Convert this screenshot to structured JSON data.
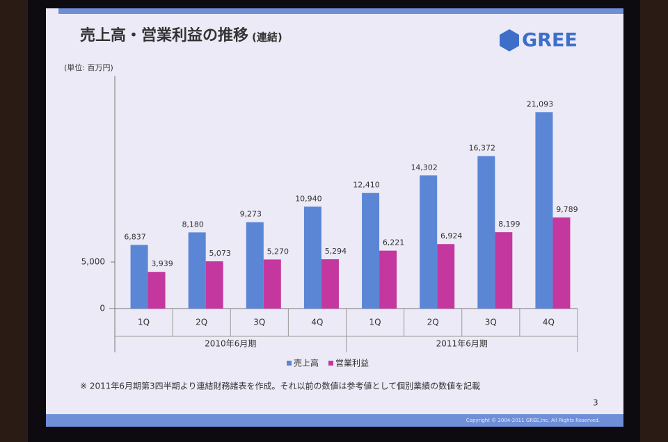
{
  "chart_data": {
    "type": "bar",
    "title": "売上高・営業利益の推移",
    "subtitle": "(連結)",
    "y_label": "(単位: 百万円)",
    "categories": [
      "1Q",
      "2Q",
      "3Q",
      "4Q",
      "1Q",
      "2Q",
      "3Q",
      "4Q"
    ],
    "groups": [
      "2010年6月期",
      "2011年6月期"
    ],
    "series": [
      {
        "name": "売上高",
        "color": "#5b86d6",
        "values": [
          6837,
          8180,
          9273,
          10940,
          12410,
          14302,
          16372,
          21093
        ],
        "value_labels": [
          "6,837",
          "8,180",
          "9,273",
          "10,940",
          "12,410",
          "14,302",
          "16,372",
          "21,093"
        ]
      },
      {
        "name": "営業利益",
        "color": "#c4379e",
        "values": [
          3939,
          5073,
          5270,
          5294,
          6221,
          6924,
          8199,
          9789
        ],
        "value_labels": [
          "3,939",
          "5,073",
          "5,270",
          "5,294",
          "6,221",
          "6,924",
          "8,199",
          "9,789"
        ]
      }
    ],
    "ylim": [
      0,
      25000
    ],
    "yticks": [
      0,
      {
        "value": 5000,
        "label": "5,000"
      }
    ],
    "grid": false,
    "legend": "bottom",
    "note": "※ 2011年6月期第3四半期より連結財務諸表を作成。それ以前の数値は参考値として個別業績の数値を記載"
  },
  "slide": {
    "logo": "GREE",
    "page": "3",
    "copyright": "Copyright © 2004-2011 GREE,Inc. All Rights Reserved."
  }
}
